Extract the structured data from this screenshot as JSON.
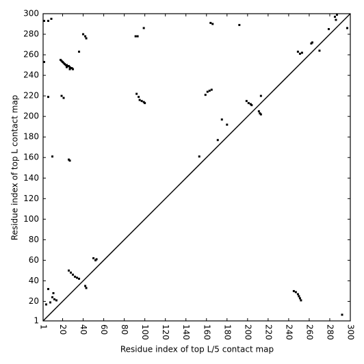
{
  "chart_data": {
    "type": "scatter",
    "xlabel": "Residue index of top L/5 contact map",
    "ylabel": "Residue index of top L contact map",
    "xlim": [
      1,
      300
    ],
    "ylim": [
      1,
      300
    ],
    "xticks": [
      1,
      20,
      40,
      60,
      80,
      100,
      120,
      140,
      160,
      180,
      200,
      220,
      240,
      260,
      280,
      300
    ],
    "yticks": [
      1,
      20,
      40,
      60,
      80,
      100,
      120,
      140,
      160,
      180,
      200,
      220,
      240,
      260,
      280,
      300
    ],
    "color": "#000000",
    "x": [
      18,
      19,
      20,
      21,
      22,
      23,
      24,
      25,
      26,
      27,
      28,
      29,
      30,
      24,
      27,
      40,
      42,
      43,
      99,
      91,
      93,
      92,
      94,
      95,
      97,
      99,
      100,
      10,
      26,
      27,
      159,
      161,
      163,
      165,
      164,
      166,
      192,
      175,
      180,
      171,
      199,
      201,
      203,
      204,
      211,
      212,
      213,
      249,
      251,
      253,
      262,
      263,
      270,
      279,
      285,
      286,
      287,
      297,
      2,
      6,
      9,
      2,
      6,
      19,
      21,
      36,
      213,
      153,
      6,
      4,
      8,
      10,
      12,
      14,
      11,
      26,
      28,
      30,
      32,
      34,
      36,
      42,
      43,
      50,
      52,
      53,
      245,
      247,
      249,
      250,
      251,
      252,
      292
    ],
    "y": [
      255,
      254,
      253,
      252,
      251,
      250,
      250,
      249,
      249,
      248,
      247,
      247,
      246,
      248,
      246,
      280,
      278,
      276,
      286,
      278,
      278,
      222,
      219,
      216,
      215,
      214,
      213,
      161,
      158,
      157,
      221,
      224,
      225,
      226,
      291,
      290,
      289,
      197,
      192,
      177,
      215,
      213,
      212,
      211,
      205,
      203,
      202,
      263,
      261,
      262,
      271,
      272,
      264,
      285,
      297,
      294,
      299,
      286,
      293,
      293,
      295,
      253,
      219,
      220,
      218,
      263,
      220,
      161,
      32,
      17,
      19,
      24,
      22,
      21,
      28,
      50,
      48,
      46,
      44,
      43,
      42,
      35,
      33,
      62,
      60,
      61,
      30,
      29,
      27,
      25,
      23,
      21,
      7
    ]
  }
}
